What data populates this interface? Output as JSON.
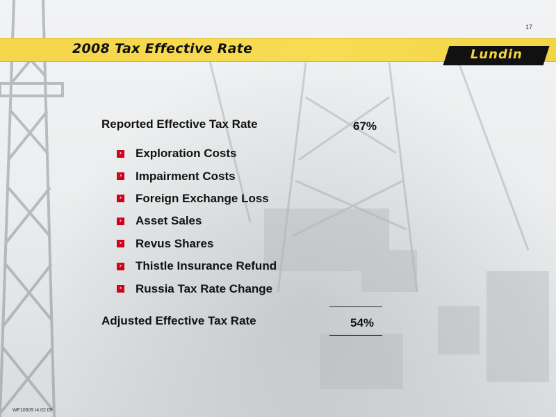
{
  "page_number": "17",
  "title": "2008 Tax Effective Rate",
  "logo_text": "Lundin",
  "reported": {
    "label": "Reported Effective Tax Rate",
    "value": "67%"
  },
  "items": [
    "Exploration Costs",
    "Impairment Costs",
    "Foreign Exchange Loss",
    "Asset Sales",
    "Revus Shares",
    "Thistle Insurance Refund",
    "Russia Tax Rate Change"
  ],
  "adjusted": {
    "label": "Adjusted Effective Tax Rate",
    "value": "54%"
  },
  "footer": "WF10609 I4.02.09",
  "colors": {
    "title_bar": "#f5d64a",
    "bullet": "#d0021b",
    "logo": "#111111"
  }
}
